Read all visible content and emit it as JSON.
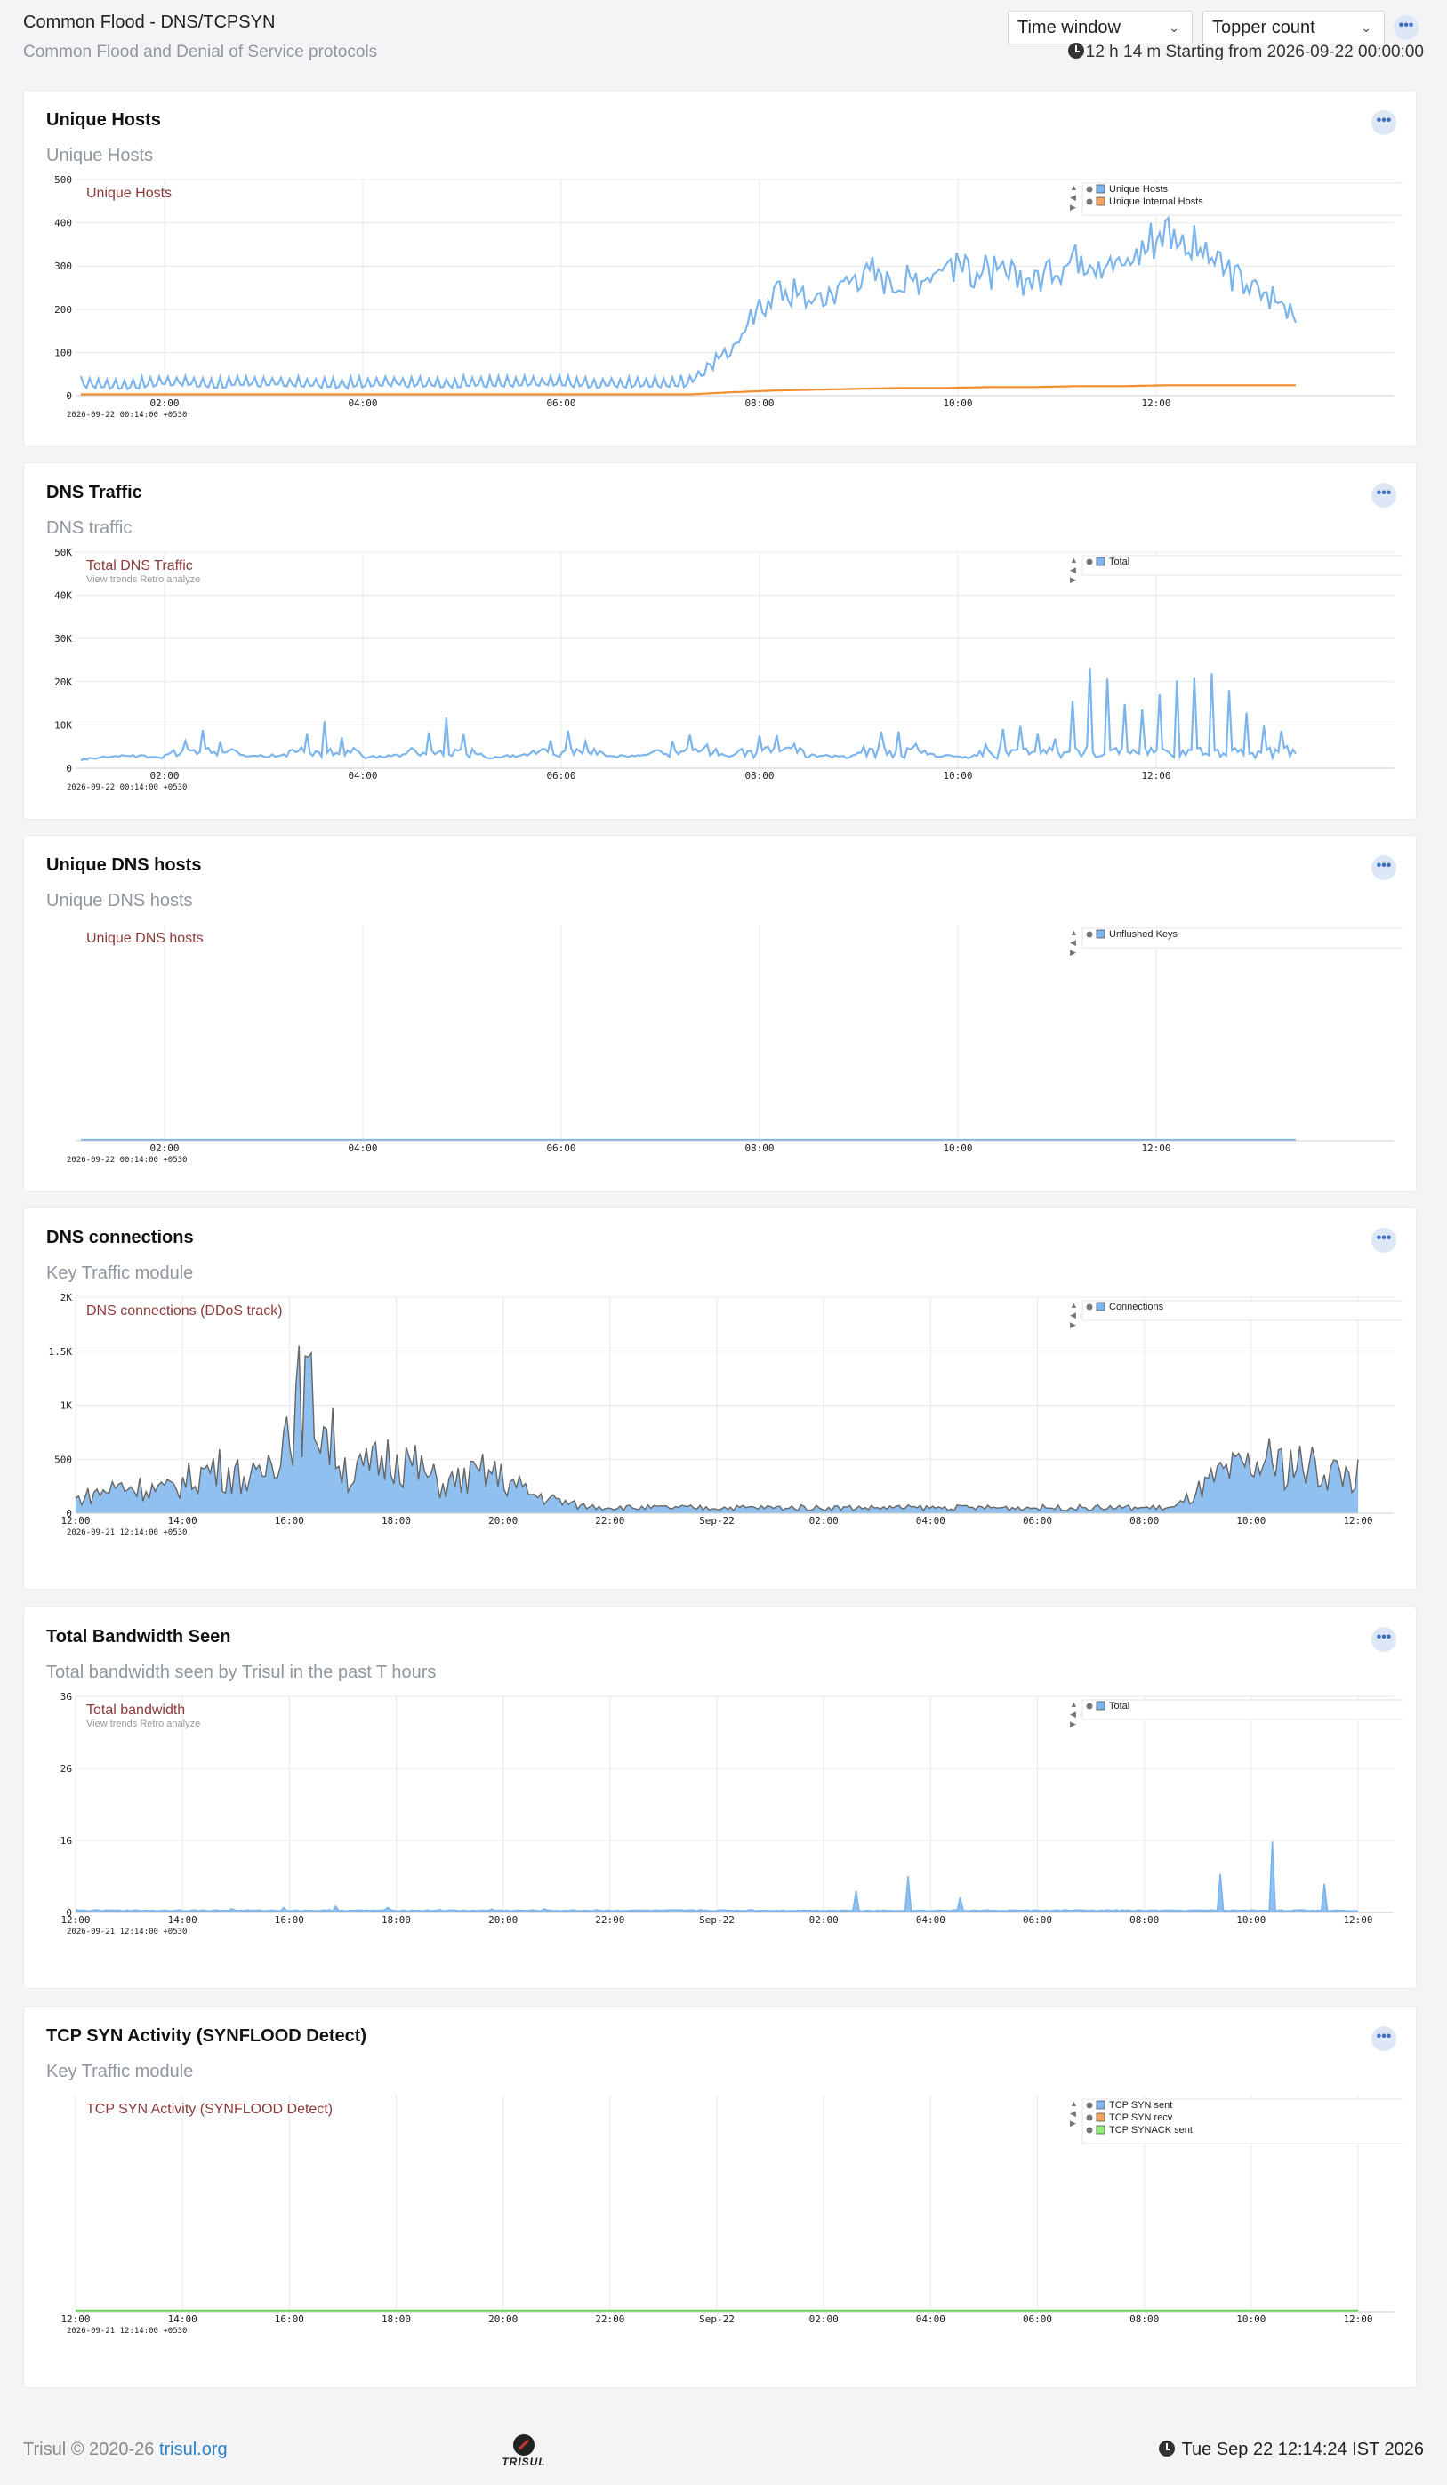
{
  "header": {
    "title": "Common Flood - DNS/TCPSYN",
    "subtitle": "Common Flood and Denial of Service protocols",
    "time_window_label": "Time window",
    "topper_count_label": "Topper count",
    "time_info": "12 h 14 m Starting from 2026-09-22 00:00:00"
  },
  "footer": {
    "copyright": "Trisul © 2020-26 ",
    "link_text": "trisul.org",
    "logo_text": "TRISUL",
    "clock": "Tue Sep 22 12:14:24 IST 2026"
  },
  "panels": [
    {
      "title": "Unique Hosts",
      "subtitle": "Unique Hosts",
      "chart_title": "Unique Hosts",
      "links": "",
      "legend": [
        {
          "name": "Unique Hosts",
          "color": "#7cb5ec"
        },
        {
          "name": "Unique Internal Hosts",
          "color": "#f4a460"
        }
      ]
    },
    {
      "title": "DNS Traffic",
      "subtitle": "DNS traffic",
      "chart_title": "Total DNS Traffic",
      "links": "View trends  Retro analyze",
      "legend": [
        {
          "name": "Total",
          "color": "#7cb5ec"
        }
      ]
    },
    {
      "title": "Unique DNS hosts",
      "subtitle": "Unique DNS hosts",
      "chart_title": "Unique DNS hosts",
      "links": "",
      "legend": [
        {
          "name": "Unflushed Keys",
          "color": "#7cb5ec"
        }
      ]
    },
    {
      "title": "DNS connections",
      "subtitle": "Key Traffic module",
      "chart_title": "DNS connections (DDoS track)",
      "links": "",
      "legend": [
        {
          "name": "Connections",
          "color": "#7cb5ec"
        }
      ]
    },
    {
      "title": "Total Bandwidth Seen",
      "subtitle": "Total bandwidth seen by Trisul in the past T hours",
      "chart_title": "Total bandwidth",
      "links": "View trends  Retro analyze",
      "legend": [
        {
          "name": "Total",
          "color": "#7cb5ec"
        }
      ]
    },
    {
      "title": "TCP SYN Activity (SYNFLOOD Detect)",
      "subtitle": "Key Traffic module",
      "chart_title": "TCP SYN Activity (SYNFLOOD Detect)",
      "links": "",
      "legend": [
        {
          "name": "TCP SYN sent",
          "color": "#7cb5ec"
        },
        {
          "name": "TCP SYN recv",
          "color": "#f4a460"
        },
        {
          "name": "TCP SYNACK sent",
          "color": "#90ee70"
        }
      ]
    }
  ],
  "chart_data": [
    {
      "type": "line",
      "title": "Unique Hosts",
      "start_label": "2026-09-22 00:14:00 +0530",
      "x_ticks": [
        "02:00",
        "04:00",
        "06:00",
        "08:00",
        "10:00",
        "12:00"
      ],
      "y_ticks": [
        "0",
        "100",
        "200",
        "300",
        "400",
        "500"
      ],
      "ylim": [
        0,
        500
      ],
      "series": [
        {
          "name": "Unique Hosts",
          "color": "#7cb5ec",
          "profile": "hosts",
          "values": [
            30,
            25,
            35,
            28,
            32,
            30,
            27,
            34,
            29,
            31,
            30,
            33,
            28,
            30,
            32,
            110,
            250,
            220,
            290,
            260,
            310,
            280,
            270,
            330,
            300,
            390,
            320,
            250,
            200
          ]
        },
        {
          "name": "Unique Internal Hosts",
          "color": "#f28e2b",
          "profile": "flat",
          "values": [
            3,
            3,
            3,
            3,
            3,
            3,
            3,
            3,
            3,
            3,
            3,
            3,
            3,
            3,
            3,
            8,
            12,
            14,
            16,
            18,
            18,
            20,
            20,
            22,
            22,
            24,
            24,
            24,
            24
          ]
        }
      ]
    },
    {
      "type": "line",
      "title": "Total DNS Traffic",
      "start_label": "2026-09-22 00:14:00 +0530",
      "x_ticks": [
        "02:00",
        "04:00",
        "06:00",
        "08:00",
        "10:00",
        "12:00"
      ],
      "y_ticks": [
        "0",
        "10K",
        "20K",
        "30K",
        "40K",
        "50K"
      ],
      "ylim": [
        0,
        50000
      ],
      "series": [
        {
          "name": "Total",
          "color": "#7cb5ec",
          "profile": "dns",
          "values": [
            2000,
            3000,
            2500,
            9000,
            2800,
            3000,
            11000,
            2500,
            3000,
            12000,
            2500,
            3000,
            9000,
            2600,
            3000,
            8000,
            2500,
            9000,
            3000,
            2500,
            10000,
            3000,
            2500,
            11000,
            6000,
            25000,
            12000,
            20000,
            22000,
            10000,
            8000
          ]
        }
      ]
    },
    {
      "type": "line",
      "title": "Unique DNS hosts",
      "start_label": "2026-09-22 00:14:00 +0530",
      "x_ticks": [
        "02:00",
        "04:00",
        "06:00",
        "08:00",
        "10:00",
        "12:00"
      ],
      "y_ticks": [],
      "ylim": [
        0,
        1
      ],
      "series": [
        {
          "name": "Unflushed Keys",
          "color": "#7cb5ec",
          "profile": "flat",
          "values": [
            0,
            0,
            0,
            0,
            0,
            0,
            0,
            0,
            0,
            0
          ]
        }
      ]
    },
    {
      "type": "area",
      "title": "DNS connections (DDoS track)",
      "start_label": "2026-09-21 12:14:00 +0530",
      "x_ticks": [
        "12:00",
        "14:00",
        "16:00",
        "18:00",
        "20:00",
        "22:00",
        "Sep-22",
        "02:00",
        "04:00",
        "06:00",
        "08:00",
        "10:00",
        "12:00"
      ],
      "y_ticks": [
        "0",
        "500",
        "1K",
        "1.5K",
        "2K"
      ],
      "ylim": [
        0,
        2000
      ],
      "series": [
        {
          "name": "Connections",
          "color": "#7cb5ec",
          "profile": "conn",
          "values": [
            150,
            300,
            250,
            500,
            350,
            1350,
            400,
            650,
            300,
            450,
            200,
            80,
            60,
            60,
            60,
            60,
            60,
            60,
            60,
            60,
            60,
            60,
            60,
            60,
            60,
            400,
            550,
            500,
            400
          ]
        }
      ]
    },
    {
      "type": "area",
      "title": "Total bandwidth",
      "start_label": "2026-09-21 12:14:00 +0530",
      "x_ticks": [
        "12:00",
        "14:00",
        "16:00",
        "18:00",
        "20:00",
        "22:00",
        "Sep-22",
        "02:00",
        "04:00",
        "06:00",
        "08:00",
        "10:00",
        "12:00"
      ],
      "y_ticks": [
        "0",
        "1G",
        "2G",
        "3G"
      ],
      "ylim": [
        0,
        3000000000
      ],
      "series": [
        {
          "name": "Total",
          "color": "#7cb5ec",
          "profile": "bw",
          "values": [
            40000000,
            30000000,
            60000000,
            90000000,
            40000000,
            50000000,
            30000000,
            40000000,
            30000000,
            550000000,
            30000000,
            40000000,
            30000000,
            1050000000,
            20000000
          ]
        }
      ]
    },
    {
      "type": "line",
      "title": "TCP SYN Activity (SYNFLOOD Detect)",
      "start_label": "2026-09-21 12:14:00 +0530",
      "x_ticks": [
        "12:00",
        "14:00",
        "16:00",
        "18:00",
        "20:00",
        "22:00",
        "Sep-22",
        "02:00",
        "04:00",
        "06:00",
        "08:00",
        "10:00",
        "12:00"
      ],
      "y_ticks": [],
      "ylim": [
        0,
        1
      ],
      "series": [
        {
          "name": "TCP SYN sent",
          "color": "#7cb5ec",
          "profile": "flat",
          "values": [
            0,
            0,
            0,
            0
          ]
        },
        {
          "name": "TCP SYN recv",
          "color": "#f4a460",
          "profile": "flat",
          "values": [
            0,
            0,
            0,
            0
          ]
        },
        {
          "name": "TCP SYNACK sent",
          "color": "#5fdc4a",
          "profile": "flat",
          "values": [
            0,
            0,
            0,
            0
          ]
        }
      ]
    }
  ]
}
